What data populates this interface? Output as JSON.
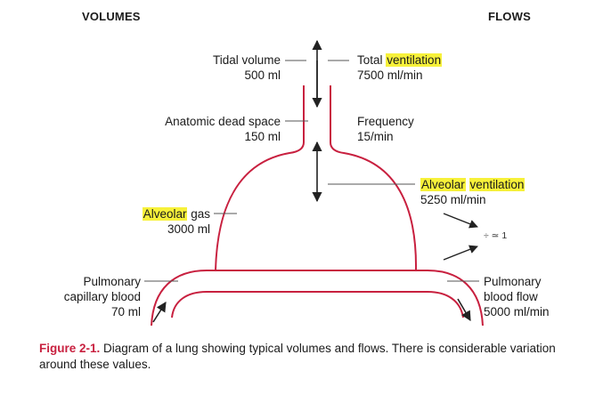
{
  "headers": {
    "volumes": "VOLUMES",
    "flows": "FLOWS"
  },
  "labels": {
    "tidal_volume": "Tidal volume",
    "tidal_volume_value": "500 ml",
    "anatomic_dead_space": "Anatomic dead space",
    "anatomic_dead_space_value": "150 ml",
    "alveolar_gas_highlight": "Alveolar",
    "alveolar_gas_rest": " gas",
    "alveolar_gas_value": "3000 ml",
    "pulmonary_capillary_blood_line1": "Pulmonary",
    "pulmonary_capillary_blood_line2": "capillary blood",
    "pulmonary_capillary_blood_value": "70 ml",
    "total_ventilation_prefix": "Total ",
    "total_ventilation_highlight": "ventilation",
    "total_ventilation_value": "7500 ml/min",
    "frequency": "Frequency",
    "frequency_value": "15/min",
    "alveolar_ventilation_word1": "Alveolar",
    "alveolar_ventilation_word2": "ventilation",
    "alveolar_ventilation_value": "5250 ml/min",
    "ratio": "÷ ≃ 1",
    "pulmonary_blood_flow_line1": "Pulmonary",
    "pulmonary_blood_flow_line2": "blood flow",
    "pulmonary_blood_flow_value": "5000 ml/min"
  },
  "caption": {
    "figure": "Figure 2-1.",
    "text": " Diagram of a lung showing typical volumes and flows. There is considerable variation around these values."
  },
  "colors": {
    "lung_outline": "#c8203f",
    "highlight": "#f7f13a",
    "figure_label": "#c8203f",
    "lines": "#444444"
  }
}
